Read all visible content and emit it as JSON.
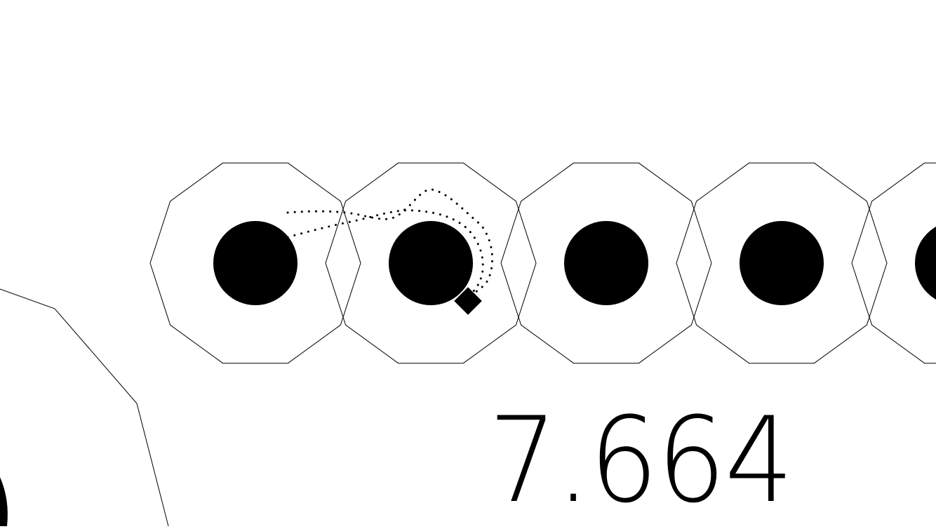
{
  "hud": {
    "score": "7.664"
  },
  "scene": {
    "background_color": "#ffffff",
    "ink_color": "#000000",
    "decagon_count_visible": 5,
    "dot_trail": true,
    "player_marker": "diamond"
  }
}
